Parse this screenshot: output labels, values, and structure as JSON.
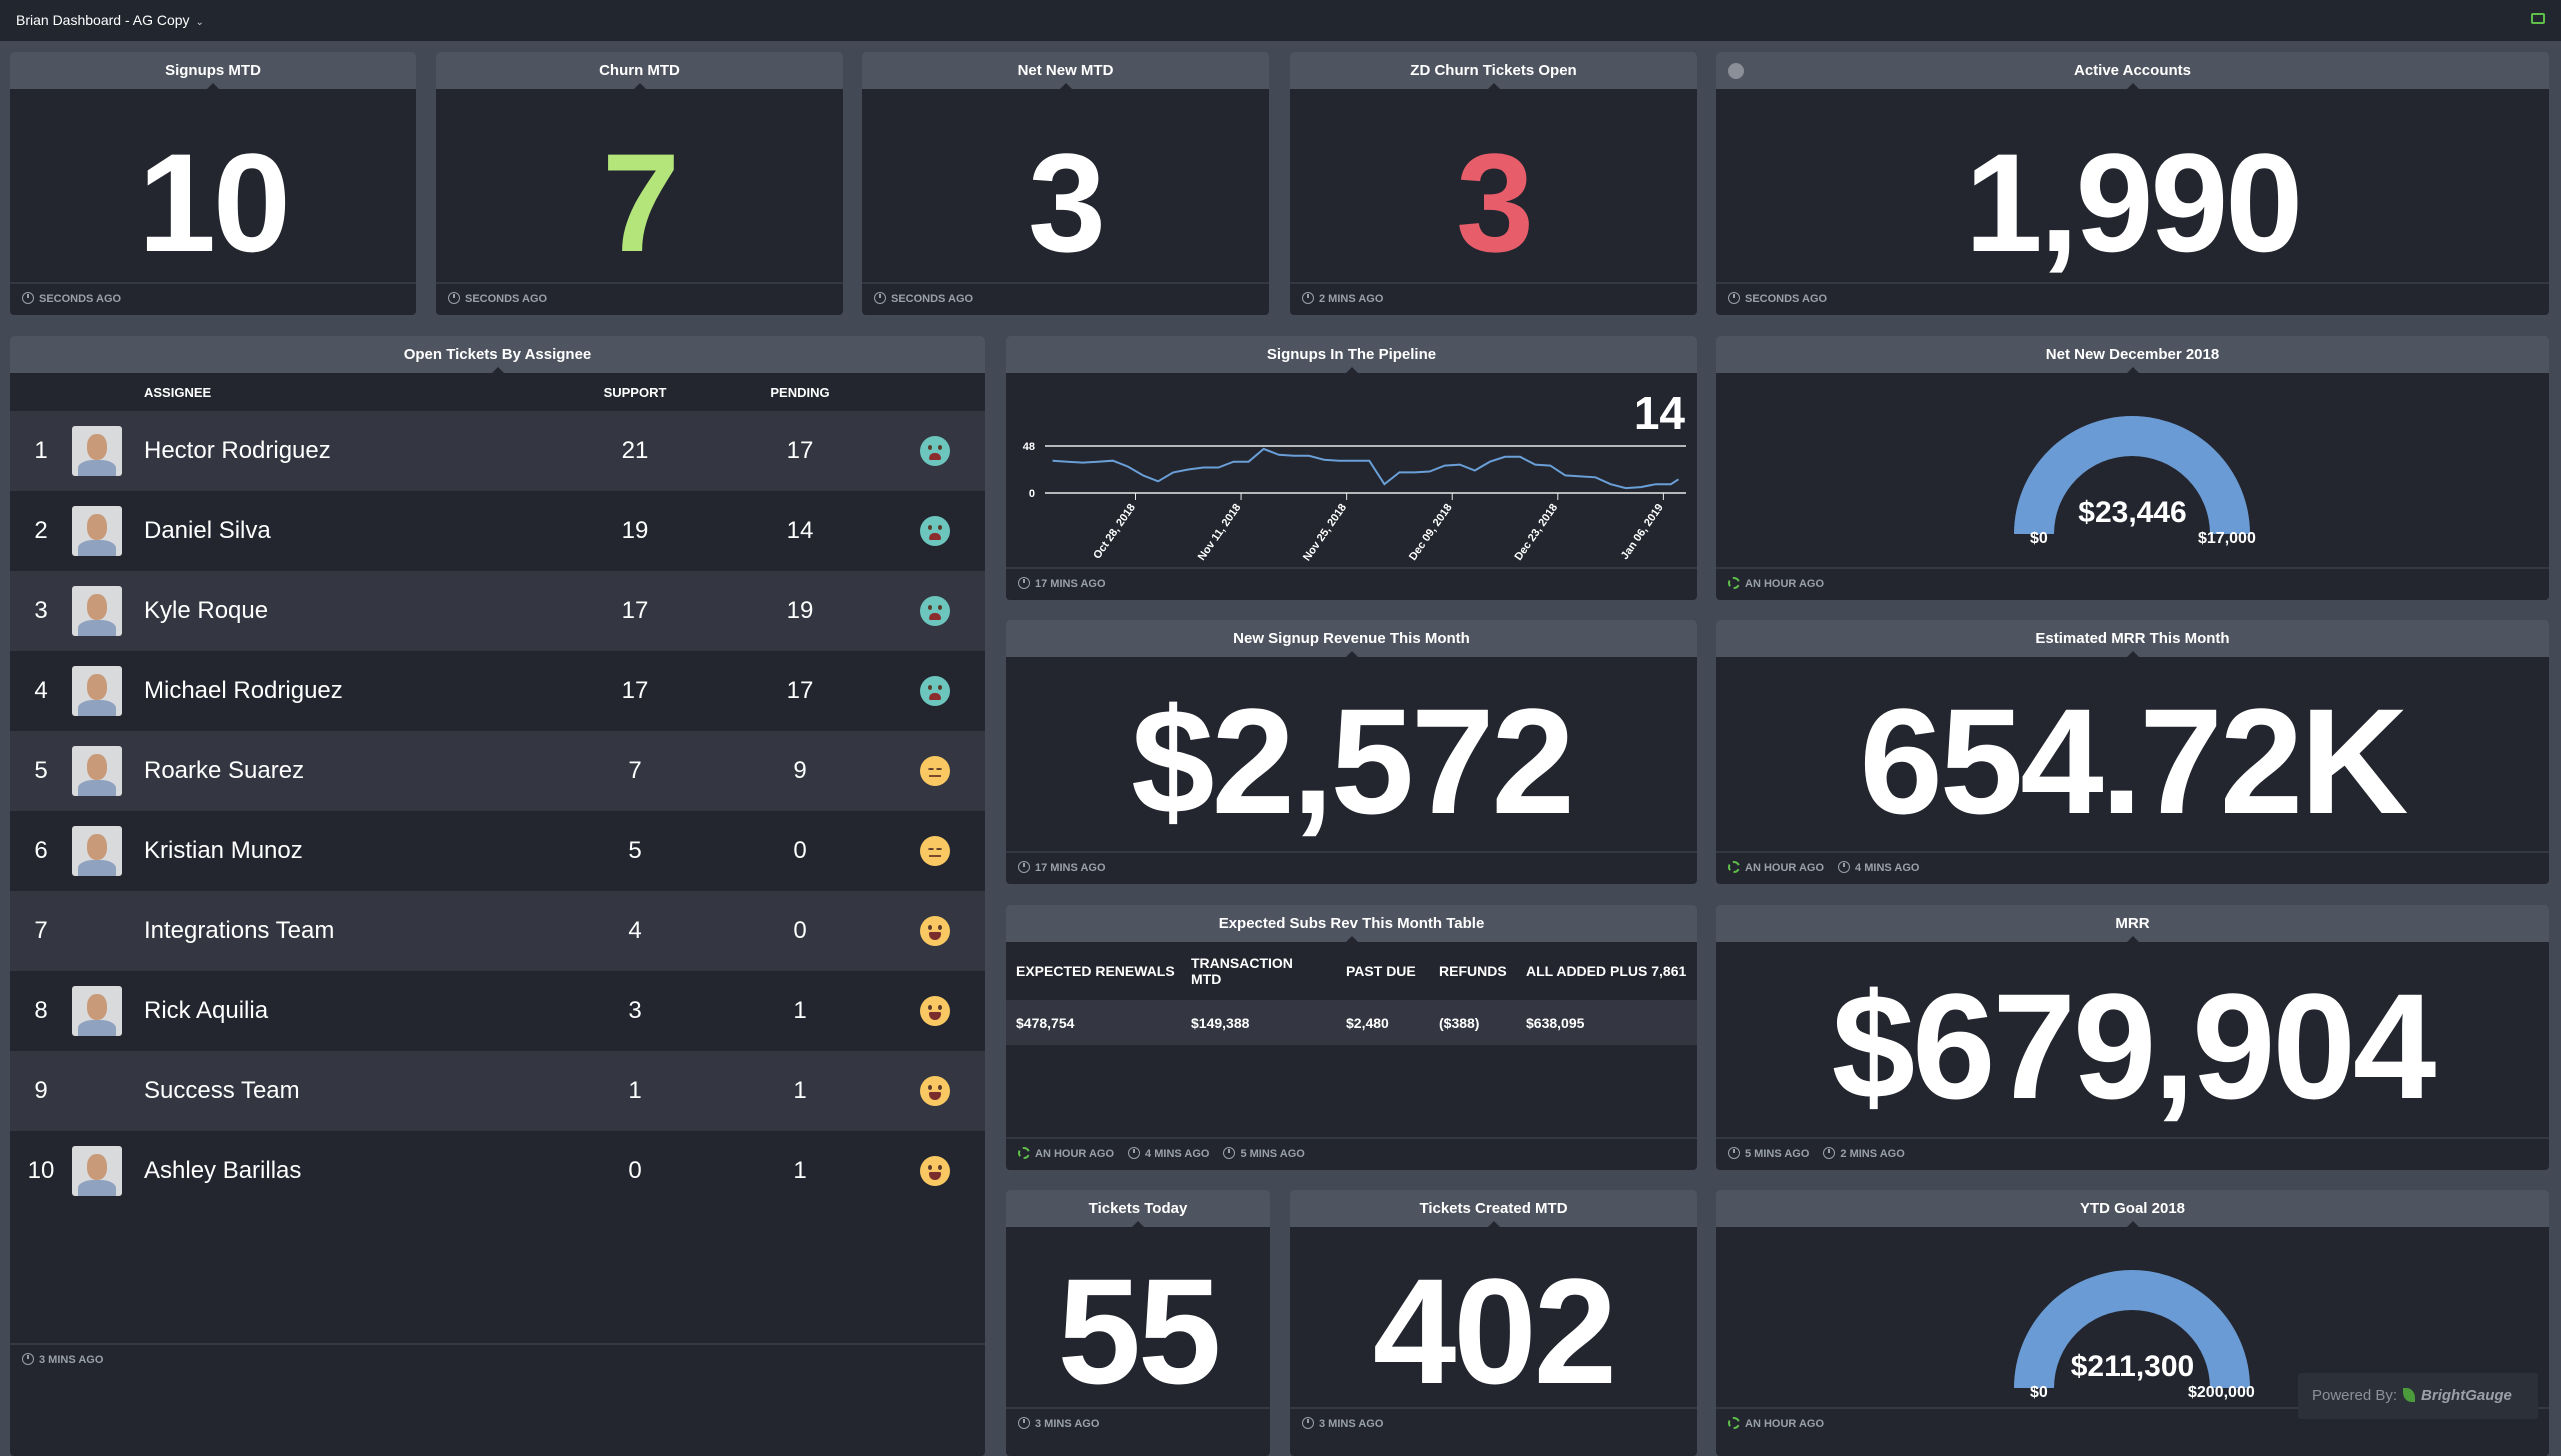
{
  "header": {
    "title": "Brian Dashboard - AG Copy",
    "accent": "#5fbf4a"
  },
  "kpis": [
    {
      "title": "Signups MTD",
      "value": "10",
      "color": "#ffffff",
      "footer": "SECONDS AGO"
    },
    {
      "title": "Churn MTD",
      "value": "7",
      "color": "#b3e57a",
      "footer": "SECONDS AGO"
    },
    {
      "title": "Net New MTD",
      "value": "3",
      "color": "#ffffff",
      "footer": "SECONDS AGO"
    },
    {
      "title": "ZD Churn Tickets Open",
      "value": "3",
      "color": "#e85d6a",
      "footer": "2 MINS AGO"
    },
    {
      "title": "Active Accounts",
      "value": "1,990",
      "color": "#ffffff",
      "footer": "SECONDS AGO",
      "icon": "info-icon"
    }
  ],
  "assignees": {
    "title": "Open Tickets By Assignee",
    "columns": [
      "ASSIGNEE",
      "SUPPORT",
      "PENDING"
    ],
    "rows": [
      {
        "rank": "1",
        "name": "Hector Rodriguez",
        "support": "21",
        "pending": "17",
        "mood": "cry",
        "avatar": true
      },
      {
        "rank": "2",
        "name": "Daniel Silva",
        "support": "19",
        "pending": "14",
        "mood": "cry",
        "avatar": true
      },
      {
        "rank": "3",
        "name": "Kyle Roque",
        "support": "17",
        "pending": "19",
        "mood": "cry",
        "avatar": true
      },
      {
        "rank": "4",
        "name": "Michael Rodriguez",
        "support": "17",
        "pending": "17",
        "mood": "cry",
        "avatar": true
      },
      {
        "rank": "5",
        "name": "Roarke Suarez",
        "support": "7",
        "pending": "9",
        "mood": "meh",
        "avatar": true
      },
      {
        "rank": "6",
        "name": "Kristian Munoz",
        "support": "5",
        "pending": "0",
        "mood": "meh",
        "avatar": true
      },
      {
        "rank": "7",
        "name": "Integrations Team",
        "support": "4",
        "pending": "0",
        "mood": "smile",
        "avatar": false
      },
      {
        "rank": "8",
        "name": "Rick Aquilia",
        "support": "3",
        "pending": "1",
        "mood": "smile",
        "avatar": true
      },
      {
        "rank": "9",
        "name": "Success Team",
        "support": "1",
        "pending": "1",
        "mood": "smile",
        "avatar": false
      },
      {
        "rank": "10",
        "name": "Ashley Barillas",
        "support": "0",
        "pending": "1",
        "mood": "smile",
        "avatar": true
      }
    ],
    "footer": "3 MINS AGO"
  },
  "pipeline": {
    "title": "Signups In The Pipeline",
    "current": "14",
    "footer": "17 MINS AGO",
    "chart_data": {
      "type": "line",
      "ylim": [
        0,
        48
      ],
      "yticks": [
        "0",
        "48"
      ],
      "xticks": [
        "Oct 28, 2018",
        "Nov 11, 2018",
        "Nov 25, 2018",
        "Dec 09, 2018",
        "Dec 23, 2018",
        "Jan 06, 2019"
      ],
      "xtick_dates": [
        "2018-10-28",
        "2018-11-11",
        "2018-11-25",
        "2018-12-09",
        "2018-12-23",
        "2019-01-06"
      ],
      "xlim": [
        "2018-10-16",
        "2019-01-09"
      ],
      "line_color": "#6a9fd8",
      "x": [
        "2018-10-17",
        "2018-10-19",
        "2018-10-21",
        "2018-10-23",
        "2018-10-25",
        "2018-10-27",
        "2018-10-29",
        "2018-10-31",
        "2018-11-02",
        "2018-11-04",
        "2018-11-06",
        "2018-11-08",
        "2018-11-10",
        "2018-11-12",
        "2018-11-14",
        "2018-11-16",
        "2018-11-18",
        "2018-11-20",
        "2018-11-22",
        "2018-11-24",
        "2018-11-26",
        "2018-11-28",
        "2018-11-30",
        "2018-12-02",
        "2018-12-04",
        "2018-12-06",
        "2018-12-08",
        "2018-12-10",
        "2018-12-12",
        "2018-12-14",
        "2018-12-16",
        "2018-12-18",
        "2018-12-20",
        "2018-12-22",
        "2018-12-24",
        "2018-12-26",
        "2018-12-28",
        "2018-12-30",
        "2019-01-01",
        "2019-01-03",
        "2019-01-05",
        "2019-01-07",
        "2019-01-08"
      ],
      "y": [
        33,
        32,
        31,
        32,
        33,
        27,
        18,
        12,
        21,
        24,
        26,
        26,
        32,
        32,
        45,
        39,
        38,
        38,
        34,
        33,
        33,
        33,
        9,
        21,
        21,
        22,
        28,
        29,
        23,
        32,
        37,
        37,
        29,
        28,
        18,
        17,
        16,
        9,
        5,
        6,
        9,
        9,
        14
      ]
    }
  },
  "net_new_dec": {
    "title": "Net New December 2018",
    "value": "$23,446",
    "min": "$0",
    "max": "$17,000",
    "fraction": 1.0,
    "color": "#6a9bd4",
    "footer": "AN HOUR AGO"
  },
  "signup_revenue": {
    "title": "New Signup Revenue This Month",
    "value": "$2,572",
    "footer": "17 MINS AGO"
  },
  "est_mrr": {
    "title": "Estimated MRR This Month",
    "value": "654.72K",
    "footers": [
      "AN HOUR AGO",
      "4 MINS AGO"
    ]
  },
  "subs_table": {
    "title": "Expected Subs Rev This Month Table",
    "columns": [
      "EXPECTED RENEWALS",
      "TRANSACTION MTD",
      "PAST DUE",
      "REFUNDS",
      "ALL ADDED PLUS 7,861"
    ],
    "row": [
      "$478,754",
      "$149,388",
      "$2,480",
      "($388)",
      "$638,095"
    ],
    "footers": [
      "AN HOUR AGO",
      "4 MINS AGO",
      "5 MINS AGO"
    ]
  },
  "mrr": {
    "title": "MRR",
    "value": "$679,904",
    "footers": [
      "5 MINS AGO",
      "2 MINS AGO"
    ]
  },
  "tickets_today": {
    "title": "Tickets Today",
    "value": "55",
    "footer": "3 MINS AGO"
  },
  "tickets_created": {
    "title": "Tickets Created MTD",
    "value": "402",
    "footer": "3 MINS AGO"
  },
  "ytd_goal": {
    "title": "YTD Goal 2018",
    "value": "$211,300",
    "min": "$0",
    "max": "$200,000",
    "fraction": 1.0,
    "color": "#6a9bd4",
    "footer": "AN HOUR AGO"
  },
  "powered": {
    "label": "Powered By:",
    "brand": "BrightGauge"
  }
}
